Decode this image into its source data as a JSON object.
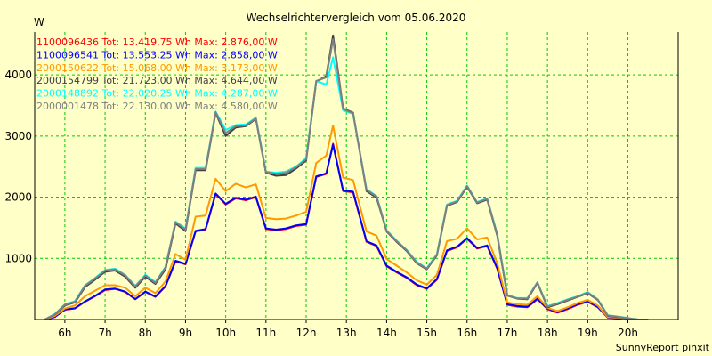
{
  "chart_data": {
    "type": "line",
    "title": "Wechselrichtervergleich vom 05.06.2020",
    "ylabel": "W",
    "xlabel": "",
    "footer": "SunnyReport pinxit",
    "ylim": [
      0,
      4700
    ],
    "xlim": [
      5.25,
      21.25
    ],
    "yticks": [
      1000,
      2000,
      3000,
      4000
    ],
    "xticks": [
      6,
      7,
      8,
      9,
      10,
      11,
      12,
      13,
      14,
      15,
      16,
      17,
      18,
      19,
      20
    ],
    "xtick_labels": [
      "6h",
      "7h",
      "8h",
      "9h",
      "10h",
      "11h",
      "12h",
      "13h",
      "14h",
      "15h",
      "16h",
      "17h",
      "18h",
      "19h",
      "20h"
    ],
    "grid": true,
    "legend_position": "top-left",
    "x": [
      5.5,
      5.75,
      6.0,
      6.25,
      6.5,
      6.75,
      7.0,
      7.25,
      7.5,
      7.75,
      8.0,
      8.25,
      8.5,
      8.75,
      9.0,
      9.25,
      9.5,
      9.75,
      10.0,
      10.25,
      10.5,
      10.75,
      11.0,
      11.25,
      11.5,
      11.75,
      12.0,
      12.25,
      12.5,
      12.667,
      12.917,
      13.167,
      13.5,
      13.75,
      14.0,
      14.25,
      14.5,
      14.75,
      15.0,
      15.25,
      15.5,
      15.75,
      16.0,
      16.25,
      16.5,
      16.75,
      17.0,
      17.25,
      17.5,
      17.75,
      18.0,
      18.25,
      18.5,
      18.75,
      19.0,
      19.25,
      19.5,
      19.75,
      20.0,
      20.25,
      20.5
    ],
    "series": [
      {
        "name": "1100096436",
        "label": "1100096436 Tot: 13.419,75 Wh Max: 2.876,00 W",
        "color": "#ff0000",
        "values": [
          0,
          40,
          160,
          180,
          290,
          380,
          480,
          500,
          450,
          330,
          450,
          370,
          540,
          950,
          900,
          1440,
          1470,
          2050,
          1880,
          1980,
          1950,
          2000,
          1480,
          1460,
          1480,
          1530,
          1550,
          2330,
          2380,
          2876,
          2100,
          2080,
          1270,
          1200,
          870,
          770,
          680,
          560,
          500,
          650,
          1120,
          1180,
          1320,
          1160,
          1200,
          830,
          240,
          210,
          200,
          330,
          170,
          110,
          170,
          240,
          290,
          200,
          30,
          20,
          10,
          0,
          0
        ]
      },
      {
        "name": "1100096541",
        "label": "1100096541 Tot: 13.553,25 Wh Max: 2.858,00 W",
        "color": "#0000ff",
        "values": [
          0,
          45,
          165,
          185,
          295,
          385,
          490,
          505,
          455,
          335,
          455,
          375,
          545,
          960,
          910,
          1450,
          1480,
          2060,
          1890,
          1990,
          1960,
          2010,
          1490,
          1470,
          1490,
          1540,
          1560,
          2340,
          2390,
          2858,
          2110,
          2090,
          1280,
          1210,
          880,
          780,
          690,
          570,
          510,
          660,
          1130,
          1190,
          1330,
          1170,
          1210,
          840,
          250,
          220,
          210,
          340,
          180,
          120,
          180,
          250,
          300,
          210,
          35,
          25,
          12,
          0,
          0
        ]
      },
      {
        "name": "2000150622",
        "label": "2000150622 Tot: 15.068,00 Wh Max: 3.173,00 W",
        "color": "#ff9900",
        "values": [
          0,
          60,
          180,
          230,
          380,
          470,
          560,
          560,
          520,
          380,
          520,
          430,
          620,
          1070,
          980,
          1680,
          1700,
          2300,
          2100,
          2220,
          2160,
          2210,
          1660,
          1640,
          1650,
          1700,
          1760,
          2560,
          2680,
          3173,
          2320,
          2280,
          1440,
          1370,
          990,
          880,
          770,
          640,
          570,
          730,
          1280,
          1320,
          1490,
          1310,
          1340,
          920,
          280,
          250,
          240,
          380,
          190,
          140,
          200,
          270,
          320,
          230,
          40,
          30,
          15,
          0,
          0
        ]
      },
      {
        "name": "2000154799",
        "label": "2000154799 Tot: 21.723,00 Wh Max: 4.644,00 W",
        "color": "#404040",
        "values": [
          0,
          80,
          230,
          280,
          530,
          650,
          780,
          800,
          700,
          520,
          700,
          580,
          820,
          1570,
          1450,
          2440,
          2440,
          3380,
          3000,
          3140,
          3160,
          3280,
          2400,
          2350,
          2360,
          2470,
          2600,
          3890,
          3980,
          4644,
          3450,
          3380,
          2100,
          1990,
          1440,
          1270,
          1120,
          920,
          820,
          1050,
          1860,
          1920,
          2170,
          1900,
          1960,
          1370,
          390,
          340,
          330,
          600,
          200,
          250,
          310,
          370,
          430,
          320,
          60,
          40,
          20,
          0,
          0
        ]
      },
      {
        "name": "2000148892",
        "label": "2000148892 Tot: 22.020,25 Wh Max: 4.287,00 W",
        "color": "#00ffff",
        "values": [
          0,
          90,
          250,
          300,
          560,
          680,
          810,
          830,
          730,
          550,
          730,
          610,
          860,
          1600,
          1490,
          2480,
          2480,
          3400,
          3100,
          3180,
          3190,
          3300,
          2420,
          2400,
          2420,
          2500,
          2640,
          3900,
          3840,
          4287,
          3420,
          3360,
          2130,
          2020,
          1460,
          1290,
          1140,
          940,
          840,
          1070,
          1880,
          1940,
          2190,
          1920,
          1980,
          1400,
          400,
          350,
          350,
          610,
          220,
          270,
          330,
          380,
          450,
          330,
          70,
          50,
          25,
          0,
          0
        ]
      },
      {
        "name": "2000001478",
        "label": "2000001478 Tot: 22.130,00 Wh Max: 4.580,00 W",
        "color": "#808080",
        "values": [
          0,
          85,
          240,
          290,
          550,
          670,
          800,
          820,
          720,
          540,
          720,
          600,
          850,
          1590,
          1470,
          2460,
          2460,
          3390,
          3050,
          3160,
          3170,
          3290,
          2410,
          2380,
          2400,
          2490,
          2620,
          3900,
          3960,
          4580,
          3440,
          3370,
          2120,
          2010,
          1450,
          1280,
          1130,
          930,
          830,
          1060,
          1870,
          1930,
          2180,
          1910,
          1970,
          1390,
          395,
          345,
          340,
          605,
          210,
          260,
          320,
          375,
          440,
          325,
          65,
          45,
          22,
          0,
          0
        ]
      }
    ]
  }
}
